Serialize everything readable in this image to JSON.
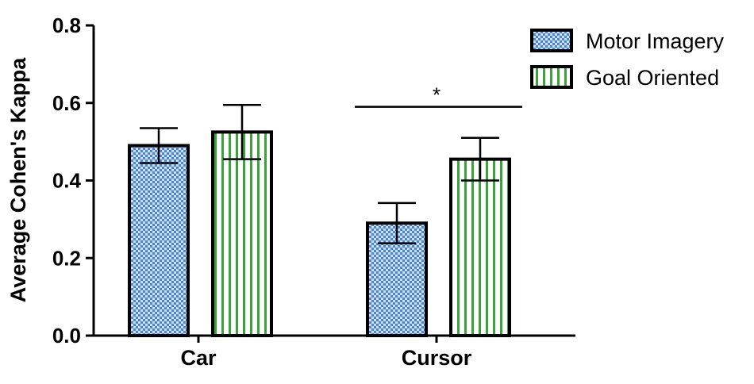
{
  "chart_data": {
    "type": "bar",
    "title": "",
    "xlabel": "",
    "ylabel": "Average Cohen's Kappa",
    "ylim": [
      0,
      0.8
    ],
    "yticks": [
      "0.0",
      "0.2",
      "0.4",
      "0.6",
      "0.8"
    ],
    "categories": [
      "Car",
      "Cursor"
    ],
    "series": [
      {
        "name": "Motor Imagery",
        "values": [
          0.49,
          0.29
        ],
        "errors": [
          0.045,
          0.052
        ],
        "pattern": "dots",
        "color": "#4a86d4"
      },
      {
        "name": "Goal Oriented",
        "values": [
          0.525,
          0.455
        ],
        "errors": [
          0.07,
          0.055
        ],
        "pattern": "vertical-stripes",
        "color": "#3aa33a"
      }
    ],
    "annotations": [
      {
        "text": "*",
        "category": "Cursor",
        "y": 0.59
      }
    ],
    "legend": "top-right",
    "grid": false
  }
}
